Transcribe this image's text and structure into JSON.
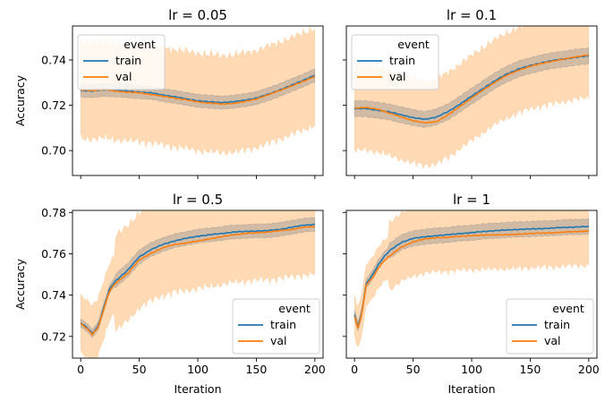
{
  "figure": {
    "axis_xlabel": "Iteration",
    "axis_ylabel": "Accuracy",
    "legend_title": "event",
    "colors": {
      "train": "#1f77b4",
      "val": "#ff7f0e",
      "train_band": "#8c8c8c",
      "val_band": "#ffbb78"
    }
  },
  "chart_data": [
    {
      "type": "line",
      "title": "lr = 0.05",
      "xlabel": "",
      "ylabel": "Accuracy",
      "xlim": [
        -7,
        207
      ],
      "ylim": [
        0.689,
        0.755
      ],
      "xticks": [
        0,
        50,
        100,
        150,
        200
      ],
      "xticklabels": [
        "",
        "",
        "",
        "",
        ""
      ],
      "yticks": [
        0.7,
        0.72,
        0.74
      ],
      "yticklabels": [
        "0.70",
        "0.72",
        "0.74"
      ],
      "legend": {
        "title": "event",
        "entries": [
          "train",
          "val"
        ],
        "position": "upper-left"
      },
      "grid": false,
      "x": [
        0,
        10,
        20,
        30,
        40,
        50,
        60,
        70,
        80,
        90,
        100,
        110,
        120,
        130,
        140,
        150,
        160,
        170,
        180,
        190,
        200
      ],
      "series": [
        {
          "name": "train",
          "values": [
            0.7265,
            0.7263,
            0.7268,
            0.7266,
            0.7262,
            0.7258,
            0.7255,
            0.7245,
            0.7238,
            0.7228,
            0.722,
            0.7215,
            0.7212,
            0.7215,
            0.7222,
            0.7232,
            0.7248,
            0.7268,
            0.7288,
            0.731,
            0.7333
          ],
          "band": [
            0.7238,
            0.7295
          ]
        },
        {
          "name": "val",
          "values": [
            0.7268,
            0.7265,
            0.727,
            0.7262,
            0.7258,
            0.7255,
            0.7248,
            0.724,
            0.7232,
            0.7224,
            0.7215,
            0.721,
            0.7205,
            0.7208,
            0.7216,
            0.7228,
            0.7246,
            0.7265,
            0.7285,
            0.7305,
            0.7328
          ],
          "band": [
            0.707,
            0.7495
          ]
        }
      ]
    },
    {
      "type": "line",
      "title": "lr = 0.1",
      "xlabel": "",
      "ylabel": "",
      "xlim": [
        -7,
        207
      ],
      "ylim": [
        0.689,
        0.755
      ],
      "xticks": [
        0,
        50,
        100,
        150,
        200
      ],
      "xticklabels": [
        "",
        "",
        "",
        "",
        ""
      ],
      "yticks": [
        0.7,
        0.72,
        0.74
      ],
      "yticklabels": [
        "",
        "",
        ""
      ],
      "legend": {
        "title": "event",
        "entries": [
          "train",
          "val"
        ],
        "position": "upper-left"
      },
      "grid": false,
      "x": [
        0,
        10,
        20,
        30,
        40,
        50,
        60,
        70,
        80,
        90,
        100,
        110,
        120,
        130,
        140,
        150,
        160,
        170,
        180,
        190,
        200
      ],
      "series": [
        {
          "name": "train",
          "values": [
            0.7185,
            0.7185,
            0.7178,
            0.717,
            0.7158,
            0.7145,
            0.7138,
            0.7148,
            0.7172,
            0.7205,
            0.724,
            0.7275,
            0.7308,
            0.7338,
            0.736,
            0.7375,
            0.7388,
            0.7398,
            0.7405,
            0.7412,
            0.7418
          ],
          "band": [
            0.7145,
            0.7215
          ]
        },
        {
          "name": "val",
          "values": [
            0.7188,
            0.719,
            0.7182,
            0.7165,
            0.7148,
            0.7132,
            0.7122,
            0.7128,
            0.7158,
            0.7195,
            0.7232,
            0.7268,
            0.7302,
            0.7332,
            0.7355,
            0.7372,
            0.7385,
            0.7395,
            0.7405,
            0.7415,
            0.7422
          ],
          "band": [
            0.702,
            0.7392
          ]
        }
      ]
    },
    {
      "type": "line",
      "title": "lr = 0.5",
      "xlabel": "Iteration",
      "ylabel": "Accuracy",
      "xlim": [
        -7,
        207
      ],
      "ylim": [
        0.7095,
        0.781
      ],
      "xticks": [
        0,
        50,
        100,
        150,
        200
      ],
      "xticklabels": [
        "0",
        "50",
        "100",
        "150",
        "200"
      ],
      "yticks": [
        0.72,
        0.74,
        0.76,
        0.78
      ],
      "yticklabels": [
        "0.72",
        "0.74",
        "0.76",
        "0.78"
      ],
      "legend": {
        "title": "event",
        "entries": [
          "train",
          "val"
        ],
        "position": "lower-right"
      },
      "grid": false,
      "x": [
        0,
        5,
        10,
        15,
        20,
        25,
        30,
        40,
        50,
        60,
        70,
        80,
        90,
        100,
        110,
        120,
        130,
        140,
        150,
        160,
        170,
        180,
        190,
        200
      ],
      "series": [
        {
          "name": "train",
          "values": [
            0.7265,
            0.7245,
            0.7215,
            0.725,
            0.7345,
            0.7435,
            0.747,
            0.752,
            0.7585,
            0.762,
            0.7645,
            0.7662,
            0.7675,
            0.7685,
            0.7692,
            0.7698,
            0.7705,
            0.7708,
            0.771,
            0.7712,
            0.7718,
            0.7728,
            0.7738,
            0.7742
          ],
          "band": [
            0.7252,
            0.7318
          ]
        },
        {
          "name": "val",
          "values": [
            0.7262,
            0.724,
            0.721,
            0.7245,
            0.7338,
            0.7425,
            0.7458,
            0.7505,
            0.757,
            0.7602,
            0.7628,
            0.7645,
            0.7652,
            0.7662,
            0.7672,
            0.7682,
            0.7692,
            0.7698,
            0.7702,
            0.7705,
            0.7712,
            0.7718,
            0.7728,
            0.7732
          ],
          "band": [
            0.7132,
            0.7588
          ]
        }
      ]
    },
    {
      "type": "line",
      "title": "lr = 1",
      "xlabel": "Iteration",
      "ylabel": "",
      "xlim": [
        -7,
        207
      ],
      "ylim": [
        0.7095,
        0.781
      ],
      "xticks": [
        0,
        50,
        100,
        150,
        200
      ],
      "xticklabels": [
        "0",
        "50",
        "100",
        "150",
        "200"
      ],
      "yticks": [
        0.72,
        0.74,
        0.76,
        0.78
      ],
      "yticklabels": [
        "",
        "",
        "",
        ""
      ],
      "legend": {
        "title": "event",
        "entries": [
          "train",
          "val"
        ],
        "position": "lower-right"
      },
      "grid": false,
      "x": [
        0,
        3,
        6,
        10,
        15,
        20,
        25,
        30,
        40,
        50,
        60,
        70,
        80,
        90,
        100,
        110,
        120,
        130,
        140,
        150,
        160,
        170,
        180,
        190,
        200
      ],
      "series": [
        {
          "name": "train",
          "values": [
            0.7305,
            0.7245,
            0.731,
            0.7455,
            0.7495,
            0.7545,
            0.7585,
            0.7615,
            0.7655,
            0.7675,
            0.7682,
            0.7688,
            0.7692,
            0.7698,
            0.7702,
            0.7708,
            0.7712,
            0.7715,
            0.7718,
            0.772,
            0.7722,
            0.7725,
            0.7728,
            0.773,
            0.7732
          ],
          "band": [
            0.7262,
            0.7335
          ]
        },
        {
          "name": "val",
          "values": [
            0.73,
            0.7238,
            0.7305,
            0.745,
            0.748,
            0.7528,
            0.7565,
            0.759,
            0.7632,
            0.7658,
            0.7672,
            0.7678,
            0.768,
            0.7685,
            0.7688,
            0.769,
            0.7692,
            0.7692,
            0.7695,
            0.7698,
            0.77,
            0.7702,
            0.7705,
            0.7708,
            0.771
          ],
          "band": [
            0.7215,
            0.7542
          ]
        }
      ]
    }
  ]
}
